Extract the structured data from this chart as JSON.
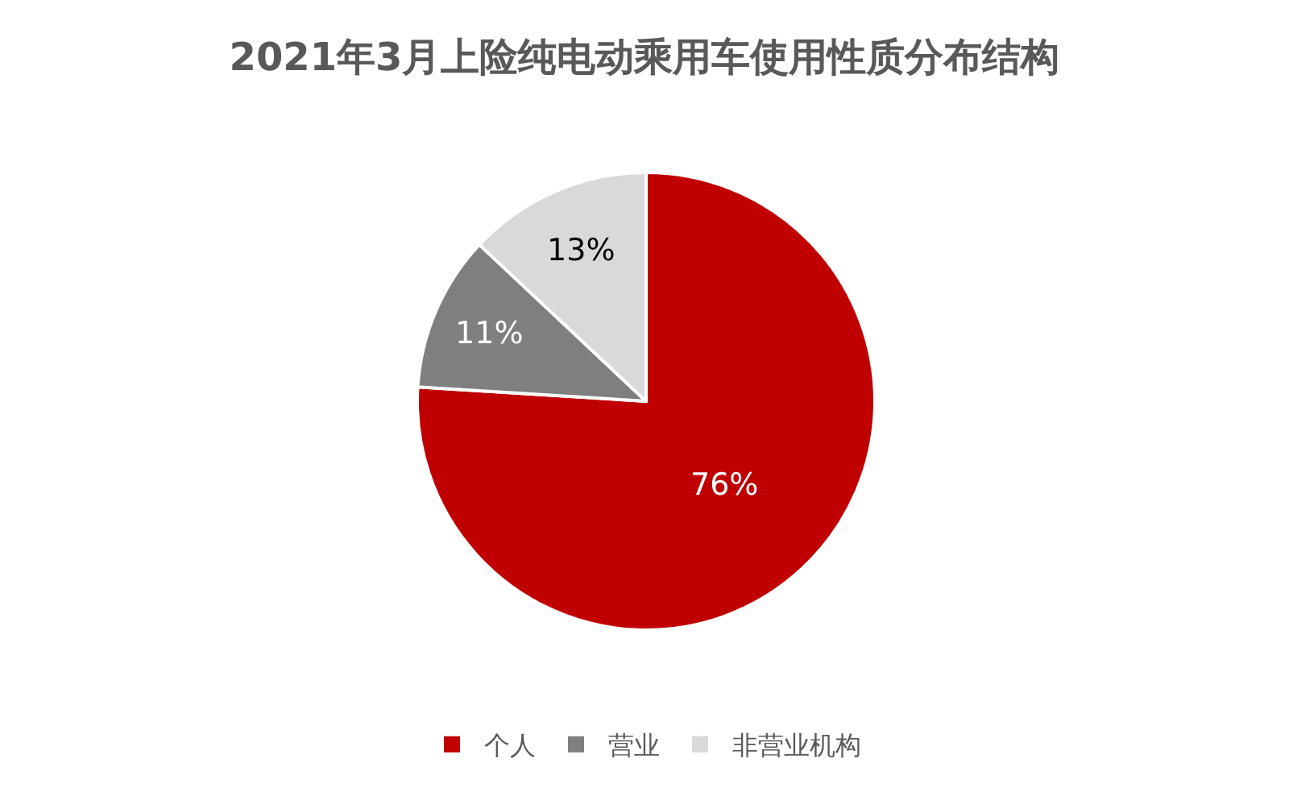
{
  "chart_data": {
    "type": "pie",
    "title": "2021年3月上险纯电动乘用车使用性质分布结构",
    "categories": [
      "个人",
      "营业",
      "非营业机构"
    ],
    "values": [
      76,
      11,
      13
    ],
    "value_labels": [
      "76%",
      "11%",
      "13%"
    ],
    "colors": [
      "#c00000",
      "#7f7f7f",
      "#d9d9d9"
    ],
    "legend": "bottom"
  }
}
